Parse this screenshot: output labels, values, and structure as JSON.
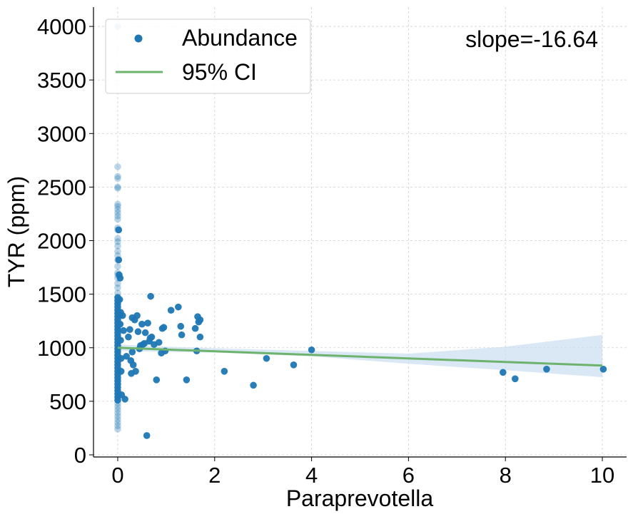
{
  "chart_data": {
    "type": "scatter",
    "xlabel": "Paraprevotella",
    "ylabel": "TYR (ppm)",
    "xlim": [
      -0.5,
      10.5
    ],
    "ylim": [
      -20,
      4180
    ],
    "xticks": [
      0,
      2,
      4,
      6,
      8,
      10
    ],
    "yticks": [
      0,
      500,
      1000,
      1500,
      2000,
      2500,
      3000,
      3500,
      4000
    ],
    "grid": true,
    "legend_position": "top-left",
    "annotation": "slope=-16.64",
    "colors": {
      "points": "#1f77b4",
      "line": "#6db36d",
      "band": "#c6dbef"
    },
    "series": [
      {
        "name": "Abundance",
        "kind": "scatter",
        "points": [
          [
            0.0,
            4000
          ],
          [
            0.0,
            2690
          ],
          [
            0.0,
            2600
          ],
          [
            0.0,
            2580
          ],
          [
            0.0,
            2500
          ],
          [
            0.0,
            2490
          ],
          [
            0.0,
            2340
          ],
          [
            0.0,
            2320
          ],
          [
            0.0,
            2290
          ],
          [
            0.0,
            2260
          ],
          [
            0.0,
            2230
          ],
          [
            0.0,
            2200
          ],
          [
            0.0,
            2120
          ],
          [
            0.0,
            2100
          ],
          [
            0.0,
            2020
          ],
          [
            0.0,
            1990
          ],
          [
            0.0,
            1950
          ],
          [
            0.0,
            1900
          ],
          [
            0.0,
            1860
          ],
          [
            0.0,
            1820
          ],
          [
            0.0,
            1760
          ],
          [
            0.0,
            1700
          ],
          [
            0.0,
            1680
          ],
          [
            0.0,
            1650
          ],
          [
            0.0,
            1600
          ],
          [
            0.0,
            1560
          ],
          [
            0.0,
            1510
          ],
          [
            0.0,
            1470
          ],
          [
            0.0,
            1440
          ],
          [
            0.0,
            1410
          ],
          [
            0.0,
            1380
          ],
          [
            0.0,
            1350
          ],
          [
            0.0,
            1320
          ],
          [
            0.0,
            1290
          ],
          [
            0.0,
            1260
          ],
          [
            0.0,
            1230
          ],
          [
            0.0,
            1200
          ],
          [
            0.0,
            1170
          ],
          [
            0.0,
            1140
          ],
          [
            0.0,
            1110
          ],
          [
            0.0,
            1080
          ],
          [
            0.0,
            1050
          ],
          [
            0.0,
            1020
          ],
          [
            0.0,
            990
          ],
          [
            0.0,
            960
          ],
          [
            0.0,
            930
          ],
          [
            0.0,
            900
          ],
          [
            0.0,
            870
          ],
          [
            0.0,
            840
          ],
          [
            0.0,
            810
          ],
          [
            0.0,
            780
          ],
          [
            0.0,
            750
          ],
          [
            0.0,
            720
          ],
          [
            0.0,
            690
          ],
          [
            0.0,
            660
          ],
          [
            0.0,
            630
          ],
          [
            0.0,
            600
          ],
          [
            0.0,
            570
          ],
          [
            0.0,
            540
          ],
          [
            0.0,
            510
          ],
          [
            0.0,
            480
          ],
          [
            0.0,
            450
          ],
          [
            0.0,
            420
          ],
          [
            0.0,
            390
          ],
          [
            0.0,
            360
          ],
          [
            0.0,
            330
          ],
          [
            0.0,
            300
          ],
          [
            0.0,
            270
          ],
          [
            0.0,
            240
          ],
          [
            0.02,
            2100
          ],
          [
            0.02,
            1820
          ],
          [
            0.03,
            1680
          ],
          [
            0.04,
            1450
          ],
          [
            0.04,
            1300
          ],
          [
            0.05,
            1220
          ],
          [
            0.05,
            1650
          ],
          [
            0.06,
            1330
          ],
          [
            0.06,
            1070
          ],
          [
            0.07,
            900
          ],
          [
            0.07,
            780
          ],
          [
            0.08,
            560
          ],
          [
            0.1,
            1300
          ],
          [
            0.12,
            1160
          ],
          [
            0.15,
            520
          ],
          [
            0.18,
            920
          ],
          [
            0.22,
            1100
          ],
          [
            0.25,
            1170
          ],
          [
            0.27,
            880
          ],
          [
            0.28,
            760
          ],
          [
            0.3,
            1280
          ],
          [
            0.3,
            960
          ],
          [
            0.32,
            840
          ],
          [
            0.35,
            1260
          ],
          [
            0.37,
            780
          ],
          [
            0.4,
            1300
          ],
          [
            0.42,
            1150
          ],
          [
            0.45,
            990
          ],
          [
            0.47,
            1020
          ],
          [
            0.5,
            1220
          ],
          [
            0.52,
            1030
          ],
          [
            0.55,
            1040
          ],
          [
            0.57,
            1140
          ],
          [
            0.6,
            180
          ],
          [
            0.62,
            1230
          ],
          [
            0.65,
            1060
          ],
          [
            0.67,
            1090
          ],
          [
            0.68,
            1480
          ],
          [
            0.7,
            1100
          ],
          [
            0.75,
            1030
          ],
          [
            0.8,
            700
          ],
          [
            0.85,
            1050
          ],
          [
            0.9,
            950
          ],
          [
            0.92,
            1180
          ],
          [
            0.95,
            1190
          ],
          [
            0.98,
            970
          ],
          [
            1.1,
            1350
          ],
          [
            1.25,
            1380
          ],
          [
            1.3,
            1200
          ],
          [
            1.32,
            1120
          ],
          [
            1.42,
            700
          ],
          [
            1.6,
            1180
          ],
          [
            1.63,
            970
          ],
          [
            1.65,
            1290
          ],
          [
            1.67,
            1240
          ],
          [
            1.7,
            1260
          ],
          [
            1.7,
            1100
          ],
          [
            2.2,
            780
          ],
          [
            2.8,
            650
          ],
          [
            3.07,
            900
          ],
          [
            3.63,
            840
          ],
          [
            4.0,
            980
          ],
          [
            7.95,
            770
          ],
          [
            8.2,
            710
          ],
          [
            8.85,
            800
          ],
          [
            10.02,
            800
          ]
        ]
      },
      {
        "name": "95% CI",
        "kind": "regression",
        "line": [
          [
            0.0,
            1000
          ],
          [
            10.0,
            833.6
          ]
        ],
        "band_upper": [
          [
            0.0,
            1030
          ],
          [
            1.0,
            1010
          ],
          [
            2.0,
            995
          ],
          [
            4.0,
            970
          ],
          [
            6.0,
            945
          ],
          [
            8.0,
            1010
          ],
          [
            10.0,
            1120
          ]
        ],
        "band_lower": [
          [
            0.0,
            970
          ],
          [
            1.0,
            960
          ],
          [
            2.0,
            955
          ],
          [
            4.0,
            920
          ],
          [
            6.0,
            850
          ],
          [
            8.0,
            790
          ],
          [
            10.0,
            725
          ]
        ]
      }
    ]
  }
}
